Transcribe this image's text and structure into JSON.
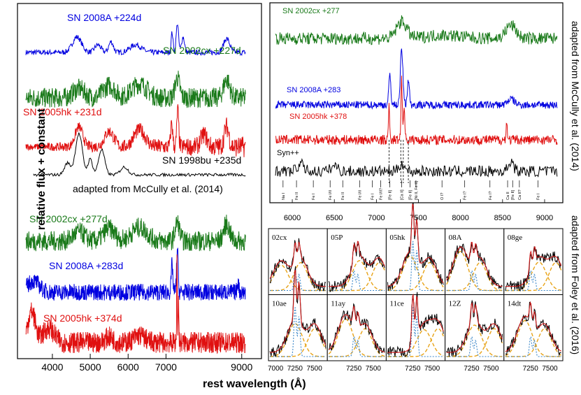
{
  "left_panel": {
    "x_axis_label": "rest wavelength (Å)",
    "y_axis_label": "relative flux + constant",
    "x_ticks": [
      "4000",
      "5000",
      "6000",
      "7000",
      "9000"
    ],
    "group_note": "adapted from McCully et al. (2014)",
    "spectra": [
      {
        "label": "SN 2008A  +224d",
        "color": "#0000e0"
      },
      {
        "label": "SN 2002cx  +227d",
        "color": "#1a7a1a"
      },
      {
        "label": "SN 2005hk  +231d",
        "color": "#e01010"
      },
      {
        "label": "SN 1998bu  +235d",
        "color": "#000000"
      },
      {
        "label": "SN 2002cx  +277d",
        "color": "#1a7a1a"
      },
      {
        "label": "SN 2008A  +283d",
        "color": "#0000e0"
      },
      {
        "label": "SN 2005hk  +374d",
        "color": "#e01010"
      }
    ]
  },
  "top_right_panel": {
    "source": "adapted from McCully et al. (2014)",
    "x_ticks": [
      "6000",
      "6500",
      "7000",
      "7500",
      "8000",
      "8500",
      "9000"
    ],
    "spectra": [
      {
        "label": "SN 2002cx  +277",
        "color": "#1a7a1a"
      },
      {
        "label": "SN 2008A   +283",
        "color": "#0000e0"
      },
      {
        "label": "SN 2005hk  +378",
        "color": "#e01010"
      },
      {
        "label": "Syn++",
        "color": "#000000"
      }
    ],
    "line_ids": [
      "Na I",
      "Fe II",
      "Fe I",
      "Fe I/II",
      "Fe II",
      "Fe I/II",
      "Fe I",
      "Fe I/II?",
      "[Fe II]",
      "[Ca II]",
      "[Fe II]",
      "[Ni II, Fe II]",
      "O I?",
      "Fe I?",
      "Fe I?",
      "Ca II",
      "[Fe II]",
      "Ca II?",
      "Fe I"
    ]
  },
  "bottom_right_panel": {
    "source": "adapted from Foley et al. (2016)",
    "x_ticks": [
      "7000",
      "7250",
      "7500"
    ],
    "subpanels": [
      "02cx",
      "05P",
      "05hk",
      "08A",
      "08ge",
      "10ae",
      "11ay",
      "11ce",
      "12Z",
      "14dt"
    ]
  },
  "chart_data": {
    "type": "line",
    "title": "",
    "xlabel": "rest wavelength (Å)",
    "ylabel": "relative flux + constant",
    "xlim": [
      3300,
      9300
    ],
    "series": [
      {
        "name": "SN 2008A +224d",
        "x": [
          4000,
          4600,
          5500,
          6300,
          7200,
          7300,
          8300,
          9000
        ],
        "values": [
          0.2,
          0.7,
          0.6,
          0.5,
          1.0,
          2.0,
          0.6,
          0.5
        ]
      },
      {
        "name": "SN 2002cx +227d",
        "x": [
          4000,
          5000,
          6000,
          7000,
          7300,
          8600,
          9000
        ],
        "values": [
          0.3,
          0.6,
          0.7,
          0.8,
          1.2,
          1.0,
          0.6
        ]
      },
      {
        "name": "SN 2005hk +231d",
        "x": [
          4000,
          4700,
          5500,
          6300,
          7300,
          8000,
          9000
        ],
        "values": [
          0.2,
          0.8,
          0.7,
          0.8,
          1.6,
          0.9,
          0.6
        ]
      },
      {
        "name": "SN 1998bu +235d",
        "x": [
          3600,
          4400,
          4700,
          5000,
          5300,
          5900,
          7200,
          9000
        ],
        "values": [
          0.1,
          0.3,
          1.6,
          0.7,
          1.0,
          0.3,
          0.1,
          0.1
        ]
      },
      {
        "name": "SN 2002cx +277d",
        "x": [
          4000,
          5000,
          6000,
          7300,
          8600,
          9000
        ],
        "values": [
          0.3,
          0.6,
          0.7,
          1.1,
          1.0,
          0.6
        ]
      },
      {
        "name": "SN 2008A +283d",
        "x": [
          3600,
          4400,
          5000,
          6500,
          7200,
          7300,
          9000
        ],
        "values": [
          0.5,
          0.3,
          0.3,
          0.2,
          1.8,
          0.4,
          0.2
        ]
      },
      {
        "name": "SN 2005hk +374d",
        "x": [
          3400,
          3800,
          5000,
          6500,
          7290,
          7300,
          9000
        ],
        "values": [
          1.0,
          0.5,
          0.3,
          0.3,
          2.5,
          0.4,
          0.3
        ]
      }
    ]
  }
}
